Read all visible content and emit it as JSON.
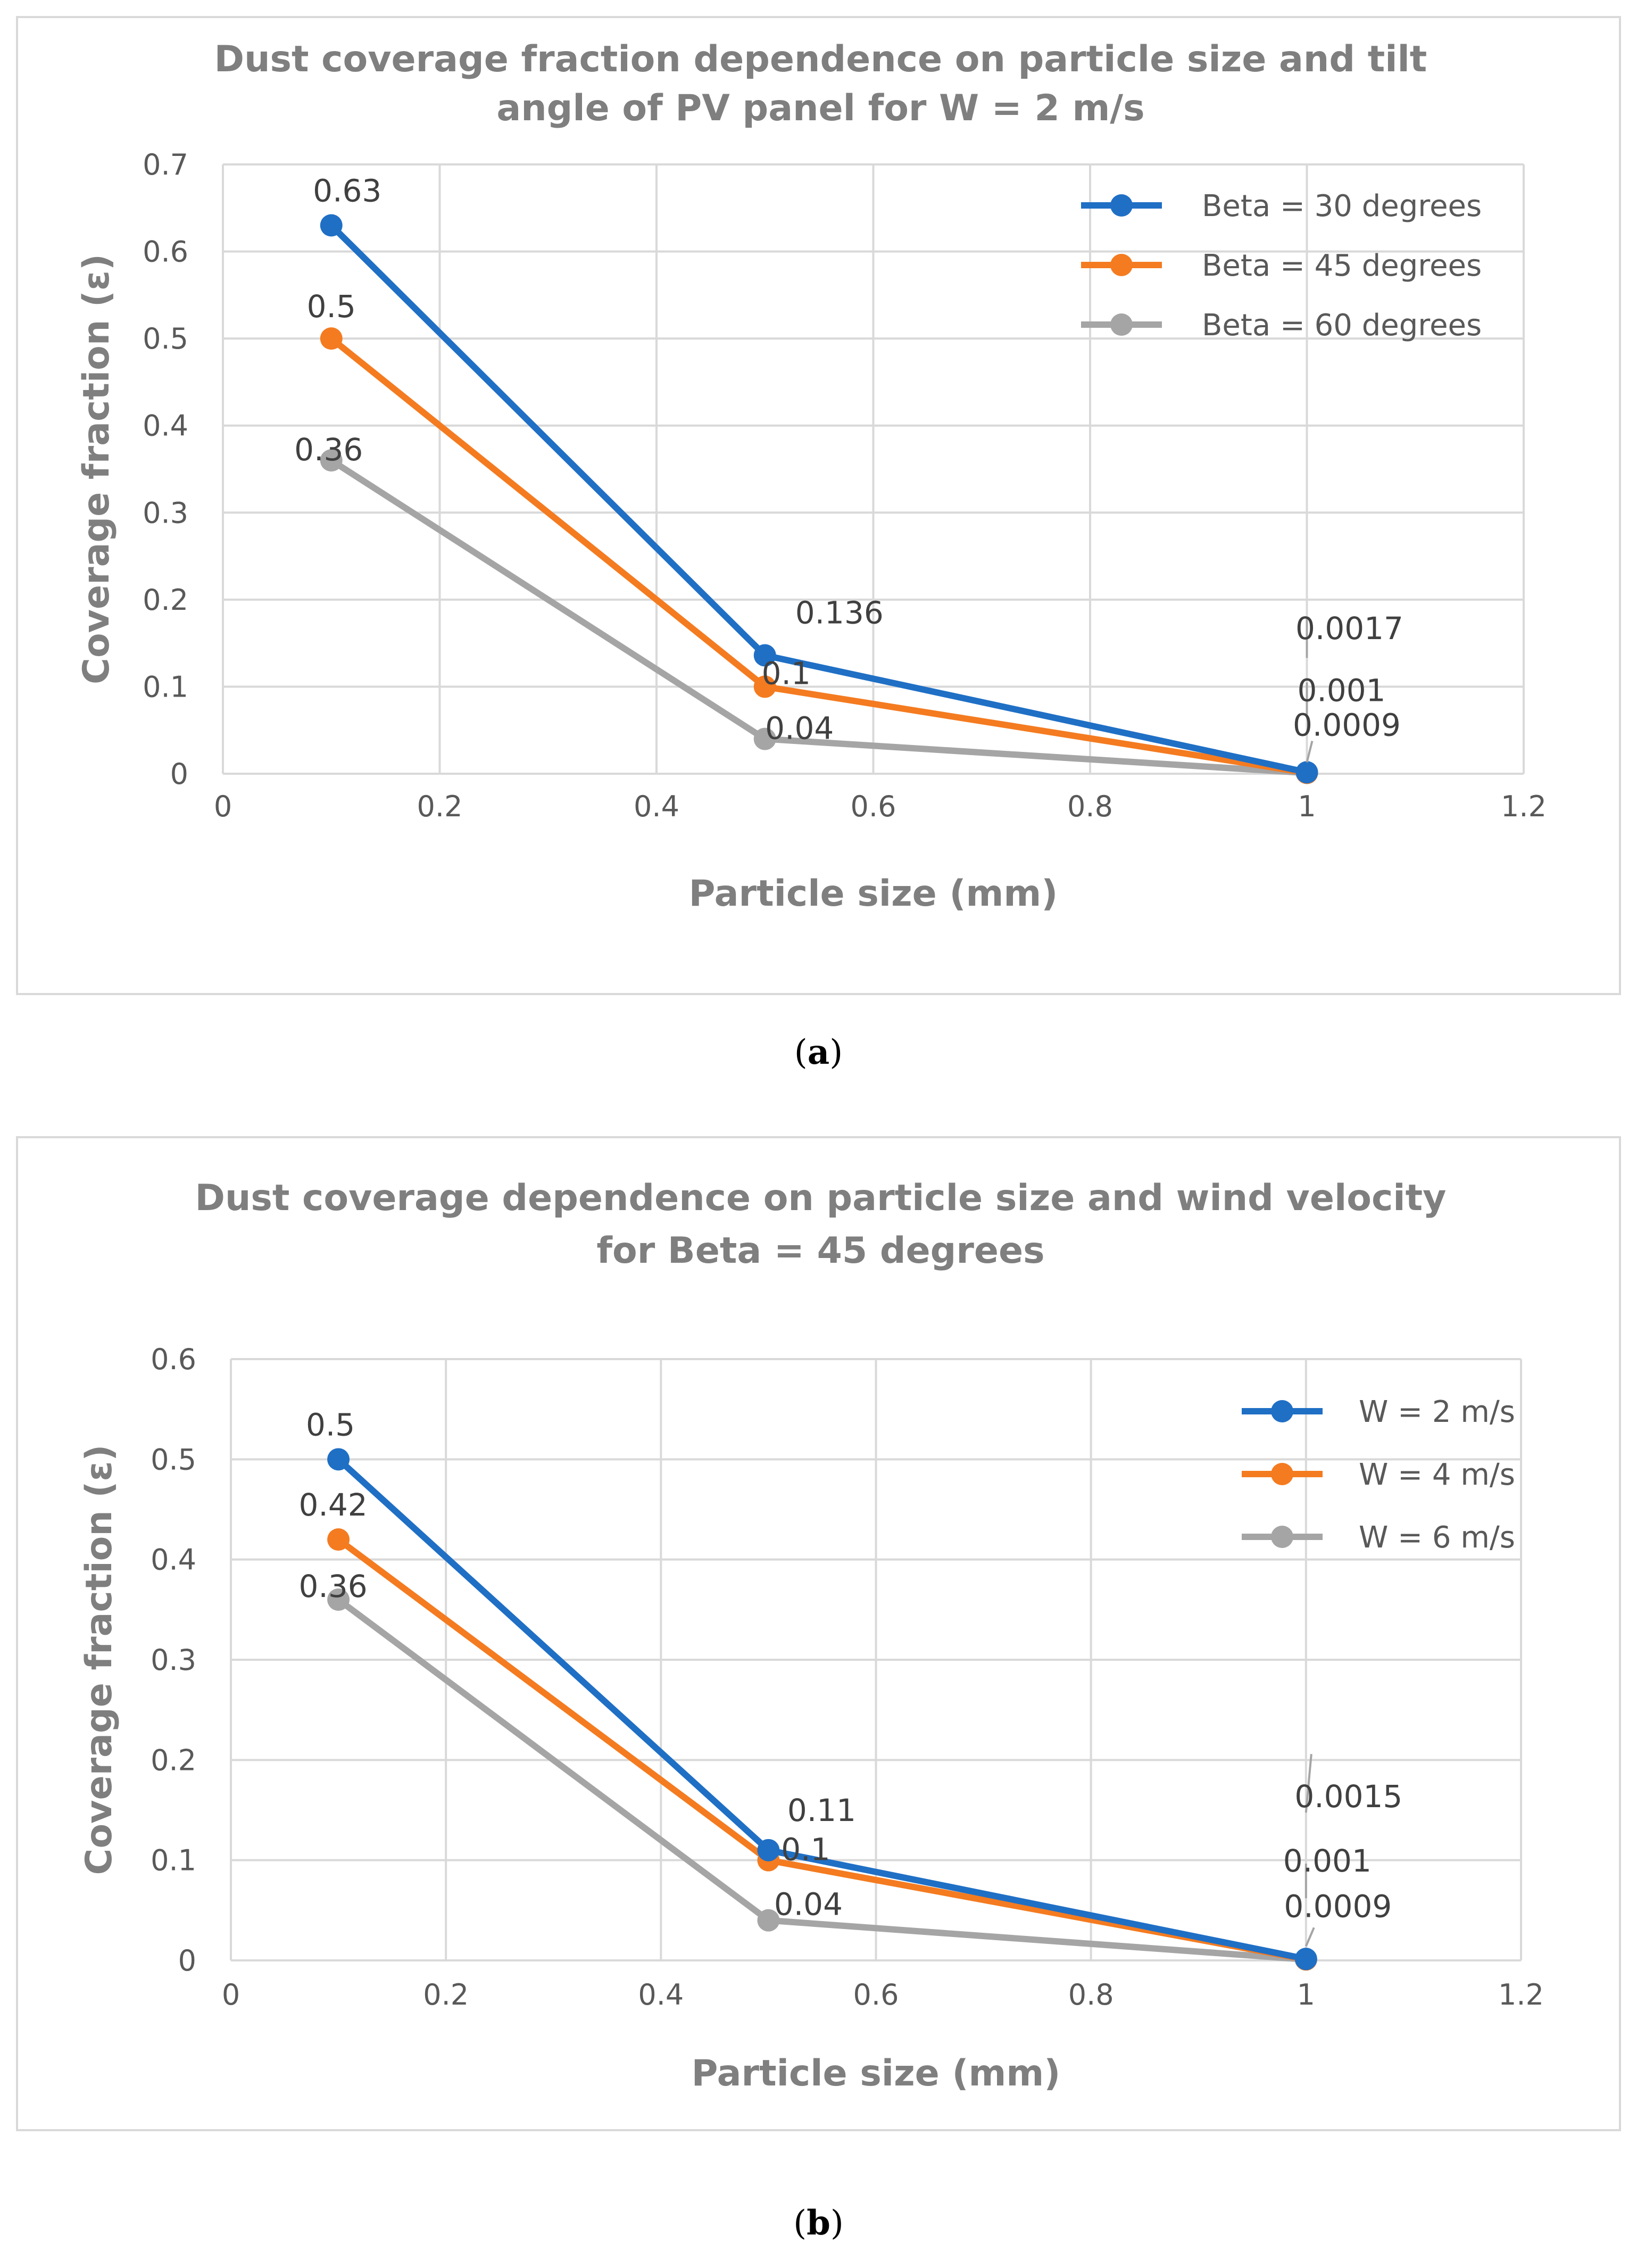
{
  "chart_data": [
    {
      "id": "a",
      "type": "line",
      "title_lines": [
        "Dust coverage fraction dependence on particle size and tilt",
        "angle of PV panel for W = 2 m/s"
      ],
      "xlabel": "Particle size (mm)",
      "ylabel": "Coverage fraction (ε)",
      "xlim": [
        0,
        1.2
      ],
      "ylim": [
        0,
        0.7
      ],
      "xticks": [
        "0",
        "0.2",
        "0.4",
        "0.6",
        "0.8",
        "1",
        "1.2"
      ],
      "yticks": [
        "0",
        "0.1",
        "0.2",
        "0.3",
        "0.4",
        "0.5",
        "0.6",
        "0.7"
      ],
      "grid": true,
      "legend_position": "top-right",
      "x": [
        0.1,
        0.5,
        1.0
      ],
      "series": [
        {
          "name": "Beta = 30 degrees",
          "color": "#1f6fc5",
          "values": [
            0.63,
            0.136,
            0.0017
          ],
          "labels": [
            "0.63",
            "0.136",
            "0.0017"
          ]
        },
        {
          "name": "Beta = 45 degrees",
          "color": "#f47b20",
          "values": [
            0.5,
            0.1,
            0.001
          ],
          "labels": [
            "0.5",
            "0.1",
            "0.001"
          ]
        },
        {
          "name": "Beta = 60 degrees",
          "color": "#a5a5a5",
          "values": [
            0.36,
            0.04,
            0.0009
          ],
          "labels": [
            "0.36",
            "0.04",
            "0.0009"
          ]
        }
      ],
      "caption": "a"
    },
    {
      "id": "b",
      "type": "line",
      "title_lines": [
        "Dust coverage dependence on particle size and wind velocity",
        "for Beta = 45 degrees"
      ],
      "xlabel": "Particle size (mm)",
      "ylabel": "Coverage fraction (ε)",
      "xlim": [
        0,
        1.2
      ],
      "ylim": [
        0,
        0.6
      ],
      "xticks": [
        "0",
        "0.2",
        "0.4",
        "0.6",
        "0.8",
        "1",
        "1.2"
      ],
      "yticks": [
        "0",
        "0.1",
        "0.2",
        "0.3",
        "0.4",
        "0.5",
        "0.6"
      ],
      "grid": true,
      "legend_position": "top-right",
      "x": [
        0.1,
        0.5,
        1.0
      ],
      "series": [
        {
          "name": "W = 2 m/s",
          "color": "#1f6fc5",
          "values": [
            0.5,
            0.11,
            0.0015
          ],
          "labels": [
            "0.5",
            "0.11",
            "0.0015"
          ]
        },
        {
          "name": "W = 4 m/s",
          "color": "#f47b20",
          "values": [
            0.42,
            0.1,
            0.001
          ],
          "labels": [
            "0.42",
            "0.1",
            "0.001"
          ]
        },
        {
          "name": "W = 6 m/s",
          "color": "#a5a5a5",
          "values": [
            0.36,
            0.04,
            0.0009
          ],
          "labels": [
            "0.36",
            "0.04",
            "0.0009"
          ]
        }
      ],
      "caption": "b"
    }
  ]
}
